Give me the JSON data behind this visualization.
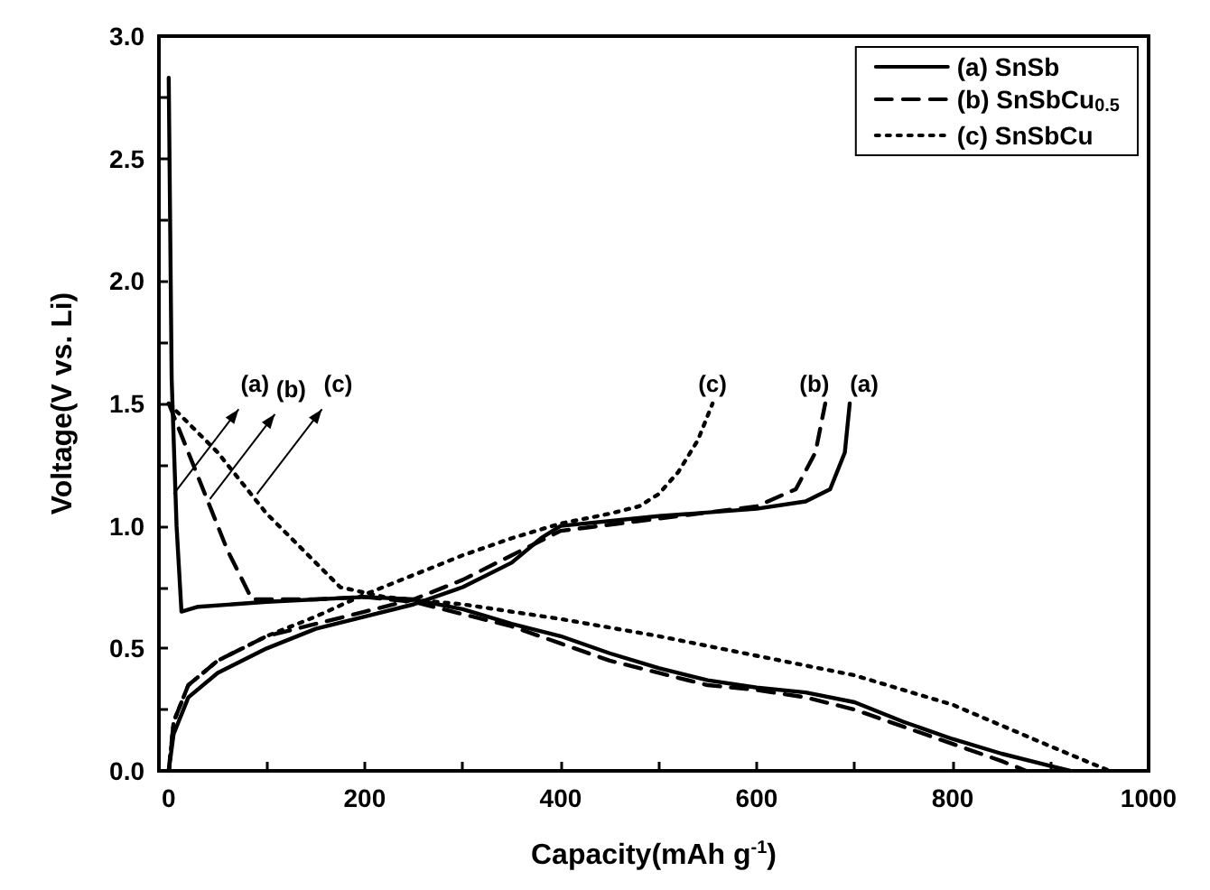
{
  "chart_data": {
    "type": "line",
    "xlabel": "Capacity(mAh g$^{-1}$)",
    "ylabel": "Voltage(V vs. Li)",
    "xlim": [
      -10,
      1000
    ],
    "ylim": [
      0,
      3
    ],
    "xticks": [
      0,
      {
        "value": 100,
        "label": null
      },
      200,
      {
        "value": 300,
        "label": null
      },
      400,
      {
        "value": 500,
        "label": null
      },
      600,
      {
        "value": 700,
        "label": null
      },
      800,
      {
        "value": 900,
        "label": null
      },
      1000
    ],
    "yticks": [
      {
        "value": 0,
        "label": "0.0"
      },
      {
        "value": 0.25,
        "label": null
      },
      {
        "value": 0.5,
        "label": "0.5"
      },
      {
        "value": 0.75,
        "label": null
      },
      {
        "value": 1,
        "label": "1.0"
      },
      {
        "value": 1.25,
        "label": null
      },
      {
        "value": 1.5,
        "label": "1.5"
      },
      {
        "value": 1.75,
        "label": null
      },
      {
        "value": 2,
        "label": "2.0"
      },
      {
        "value": 2.25,
        "label": null
      },
      {
        "value": 2.5,
        "label": "2.5"
      },
      {
        "value": 2.75,
        "label": null
      },
      {
        "value": 3,
        "label": "3.0"
      }
    ],
    "grid": false,
    "legend": "top right",
    "marker": "none",
    "series": [
      {
        "name": "(a) SnSb",
        "color": "#000000",
        "line_style": "solid",
        "x": [
          0,
          3,
          8,
          13,
          30,
          100,
          200,
          250,
          300,
          350,
          400,
          450,
          500,
          550,
          600,
          650,
          700,
          750,
          800,
          850,
          900,
          920
        ],
        "values": [
          2.83,
          1.6,
          1.0,
          0.65,
          0.67,
          0.69,
          0.71,
          0.7,
          0.66,
          0.6,
          0.55,
          0.48,
          0.42,
          0.37,
          0.34,
          0.32,
          0.28,
          0.2,
          0.13,
          0.07,
          0.02,
          0.0
        ]
      },
      {
        "color": "#000000",
        "line_style": "solid",
        "x": [
          0,
          5,
          20,
          50,
          100,
          150,
          200,
          250,
          300,
          350,
          380,
          400,
          500,
          600,
          650,
          675,
          690,
          695
        ],
        "values": [
          0.0,
          0.15,
          0.3,
          0.4,
          0.5,
          0.58,
          0.63,
          0.68,
          0.75,
          0.85,
          0.95,
          1.0,
          1.04,
          1.07,
          1.1,
          1.15,
          1.3,
          1.5
        ]
      },
      {
        "name": "(b) SnSbCu$_{0.5}$",
        "color": "#000000",
        "line_style": "dashed",
        "x": [
          0,
          30,
          60,
          85,
          150,
          200,
          250,
          300,
          350,
          400,
          450,
          500,
          550,
          600,
          650,
          700,
          750,
          800,
          850,
          875
        ],
        "values": [
          1.5,
          1.2,
          0.9,
          0.7,
          0.7,
          0.71,
          0.69,
          0.64,
          0.59,
          0.52,
          0.45,
          0.4,
          0.35,
          0.33,
          0.3,
          0.25,
          0.18,
          0.11,
          0.04,
          0.0
        ]
      },
      {
        "color": "#000000",
        "line_style": "dashed",
        "x": [
          0,
          5,
          20,
          50,
          100,
          150,
          200,
          250,
          300,
          350,
          400,
          500,
          600,
          640,
          660,
          670
        ],
        "values": [
          0.0,
          0.2,
          0.35,
          0.45,
          0.55,
          0.6,
          0.65,
          0.7,
          0.78,
          0.88,
          0.98,
          1.03,
          1.08,
          1.15,
          1.3,
          1.5
        ]
      },
      {
        "name": "(c) SnSbCu",
        "color": "#000000",
        "line_style": "dotted",
        "x": [
          0,
          50,
          100,
          150,
          175,
          220,
          300,
          400,
          500,
          600,
          700,
          800,
          900,
          960
        ],
        "values": [
          1.5,
          1.3,
          1.05,
          0.85,
          0.75,
          0.71,
          0.68,
          0.62,
          0.55,
          0.47,
          0.39,
          0.27,
          0.1,
          0.0
        ]
      },
      {
        "color": "#000000",
        "line_style": "dotted",
        "x": [
          0,
          5,
          20,
          50,
          100,
          150,
          200,
          250,
          300,
          350,
          400,
          450,
          480,
          500,
          520,
          540,
          555
        ],
        "values": [
          0.0,
          0.2,
          0.35,
          0.45,
          0.55,
          0.63,
          0.72,
          0.8,
          0.88,
          0.95,
          1.01,
          1.05,
          1.08,
          1.13,
          1.22,
          1.35,
          1.5
        ]
      }
    ],
    "annotations": [
      {
        "text": "(a)",
        "x": 5,
        "y": 1.13
      },
      {
        "text": "(b)",
        "x": 42,
        "y": 1.11
      },
      {
        "text": "(c)",
        "x": 90,
        "y": 1.13
      },
      {
        "text": "(c)",
        "x": 555,
        "y": 1.5
      },
      {
        "text": "(b)",
        "x": 670,
        "y": 1.5
      },
      {
        "text": "(a)",
        "x": 695,
        "y": 1.5
      }
    ]
  }
}
